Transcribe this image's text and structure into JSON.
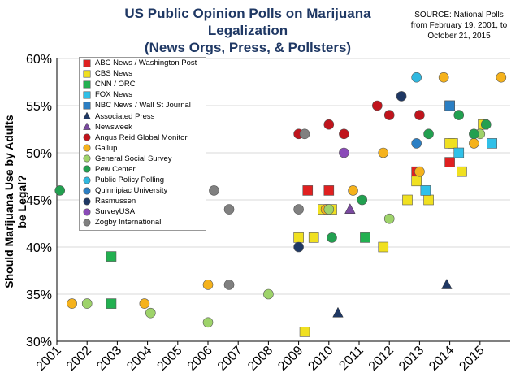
{
  "title_line1": "US Public Opinion Polls on Marijuana Legalization",
  "title_line2": "(News Orgs, Press, & Pollsters)",
  "source_line1": "SOURCE: National Polls",
  "source_line2": "from February 19, 2001, to",
  "source_line3": "October 21, 2015",
  "pollsters": [
    {
      "name": "ABC News / Washington Post",
      "color": "#e02020",
      "shape": "square"
    },
    {
      "name": "CBS News",
      "color": "#f0e020",
      "shape": "square"
    },
    {
      "name": "CNN / ORC",
      "color": "#22b050",
      "shape": "square"
    },
    {
      "name": "FOX News",
      "color": "#30c0e8",
      "shape": "square"
    },
    {
      "name": "NBC News / Wall St Journal",
      "color": "#2b7fc4",
      "shape": "square"
    },
    {
      "name": "Associated Press",
      "color": "#1f3864",
      "shape": "triangle"
    },
    {
      "name": "Newsweek",
      "color": "#7a4aa0",
      "shape": "triangle"
    },
    {
      "name": "Angus Reid Global Monitor",
      "color": "#c0141c",
      "shape": "circle"
    },
    {
      "name": "Gallup",
      "color": "#f5b21c",
      "shape": "circle"
    },
    {
      "name": "General Social Survey",
      "color": "#9ed36a",
      "shape": "circle"
    },
    {
      "name": "Pew Center",
      "color": "#22a050",
      "shape": "circle"
    },
    {
      "name": "Public Policy Polling",
      "color": "#30b8e0",
      "shape": "circle"
    },
    {
      "name": "Quinnipiac University",
      "color": "#2b7fc4",
      "shape": "circle"
    },
    {
      "name": "Rasmussen",
      "color": "#1f3864",
      "shape": "circle"
    },
    {
      "name": "SurveyUSA",
      "color": "#8a4ab8",
      "shape": "circle"
    },
    {
      "name": "Zogby International",
      "color": "#808080",
      "shape": "circle"
    }
  ],
  "chart_data": {
    "type": "scatter",
    "title": "US Public Opinion Polls on Marijuana Legalization (News Orgs, Press, & Pollsters)",
    "xlabel": "",
    "ylabel": "Should Marijuana Use by Adults be Legal?",
    "xlim": [
      2001,
      2016
    ],
    "ylim": [
      30,
      60
    ],
    "x_ticks": [
      "2001",
      "2002",
      "2003",
      "2004",
      "2005",
      "2006",
      "2007",
      "2008",
      "2009",
      "2010",
      "2011",
      "2012",
      "2013",
      "2014",
      "2015"
    ],
    "y_ticks": [
      "30%",
      "35%",
      "40%",
      "45%",
      "50%",
      "55%",
      "60%"
    ],
    "y_tick_values": [
      30,
      35,
      40,
      45,
      50,
      55,
      60
    ],
    "series": [
      {
        "name": "ABC News / Washington Post",
        "points": [
          [
            2009.3,
            46
          ],
          [
            2010.0,
            46
          ],
          [
            2012.9,
            48
          ],
          [
            2014.0,
            49
          ]
        ]
      },
      {
        "name": "CBS News",
        "points": [
          [
            2009.0,
            41
          ],
          [
            2009.2,
            31
          ],
          [
            2009.5,
            41
          ],
          [
            2009.8,
            44
          ],
          [
            2010.1,
            44
          ],
          [
            2011.8,
            40
          ],
          [
            2012.6,
            45
          ],
          [
            2012.9,
            47
          ],
          [
            2013.3,
            45
          ],
          [
            2014.0,
            51
          ],
          [
            2014.1,
            51
          ],
          [
            2014.4,
            48
          ],
          [
            2015.1,
            53
          ]
        ]
      },
      {
        "name": "CNN / ORC",
        "points": [
          [
            2002.8,
            39
          ],
          [
            2002.8,
            34
          ],
          [
            2011.2,
            41
          ],
          [
            2014.0,
            55
          ]
        ]
      },
      {
        "name": "FOX News",
        "points": [
          [
            2013.2,
            46
          ],
          [
            2014.3,
            50
          ],
          [
            2015.4,
            51
          ]
        ]
      },
      {
        "name": "NBC News / Wall St Journal",
        "points": [
          [
            2014.0,
            55
          ]
        ]
      },
      {
        "name": "Associated Press",
        "points": [
          [
            2010.3,
            33
          ],
          [
            2013.9,
            36
          ]
        ]
      },
      {
        "name": "Newsweek",
        "points": [
          [
            2010.7,
            44
          ]
        ]
      },
      {
        "name": "Angus Reid Global Monitor",
        "points": [
          [
            2009.0,
            52
          ],
          [
            2010.0,
            53
          ],
          [
            2010.5,
            52
          ],
          [
            2011.6,
            55
          ],
          [
            2012.0,
            54
          ],
          [
            2013.0,
            54
          ]
        ]
      },
      {
        "name": "Gallup",
        "points": [
          [
            2001.5,
            34
          ],
          [
            2003.9,
            34
          ],
          [
            2006.0,
            36
          ],
          [
            2009.9,
            44
          ],
          [
            2010.8,
            46
          ],
          [
            2011.8,
            50
          ],
          [
            2013.0,
            48
          ],
          [
            2013.8,
            58
          ],
          [
            2014.8,
            51
          ],
          [
            2015.7,
            58
          ]
        ]
      },
      {
        "name": "General Social Survey",
        "points": [
          [
            2002.0,
            34
          ],
          [
            2004.1,
            33
          ],
          [
            2006.0,
            32
          ],
          [
            2008.0,
            35
          ],
          [
            2010.0,
            44
          ],
          [
            2012.0,
            43
          ],
          [
            2015.0,
            52
          ]
        ]
      },
      {
        "name": "Pew Center",
        "points": [
          [
            2001.1,
            46
          ],
          [
            2010.1,
            41
          ],
          [
            2011.1,
            45
          ],
          [
            2013.3,
            52
          ],
          [
            2014.3,
            54
          ],
          [
            2014.8,
            52
          ],
          [
            2015.2,
            53
          ]
        ]
      },
      {
        "name": "Public Policy Polling",
        "points": [
          [
            2012.9,
            58
          ]
        ]
      },
      {
        "name": "Quinnipiac University",
        "points": [
          [
            2012.9,
            51
          ]
        ]
      },
      {
        "name": "Rasmussen",
        "points": [
          [
            2009.0,
            40
          ],
          [
            2012.4,
            56
          ]
        ]
      },
      {
        "name": "SurveyUSA",
        "points": [
          [
            2010.5,
            50
          ]
        ]
      },
      {
        "name": "Zogby International",
        "points": [
          [
            2006.2,
            46
          ],
          [
            2006.7,
            44
          ],
          [
            2006.7,
            36
          ],
          [
            2009.0,
            44
          ],
          [
            2009.2,
            52
          ]
        ]
      }
    ]
  }
}
